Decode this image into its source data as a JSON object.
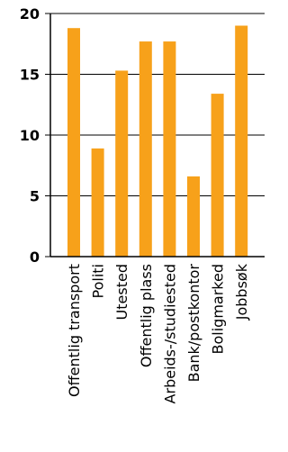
{
  "chart_data": {
    "type": "bar",
    "title": "",
    "xlabel": "",
    "ylabel": "",
    "categories": [
      "Offentlig transport",
      "Politi",
      "Utested",
      "Offentlig plass",
      "Arbeids-/studiested",
      "Bank/postkontor",
      "Boligmarked",
      "Jobbsøk"
    ],
    "values": [
      18.8,
      8.9,
      15.3,
      17.7,
      17.7,
      6.6,
      13.4,
      19.0
    ],
    "ylim": [
      0,
      20
    ],
    "yticks": [
      0,
      5,
      10,
      15,
      20
    ],
    "grid": true,
    "legend": "none",
    "colors": {
      "bar": "#f7a11a",
      "grid": "#000000",
      "axis": "#000000",
      "text": "#000000"
    }
  }
}
